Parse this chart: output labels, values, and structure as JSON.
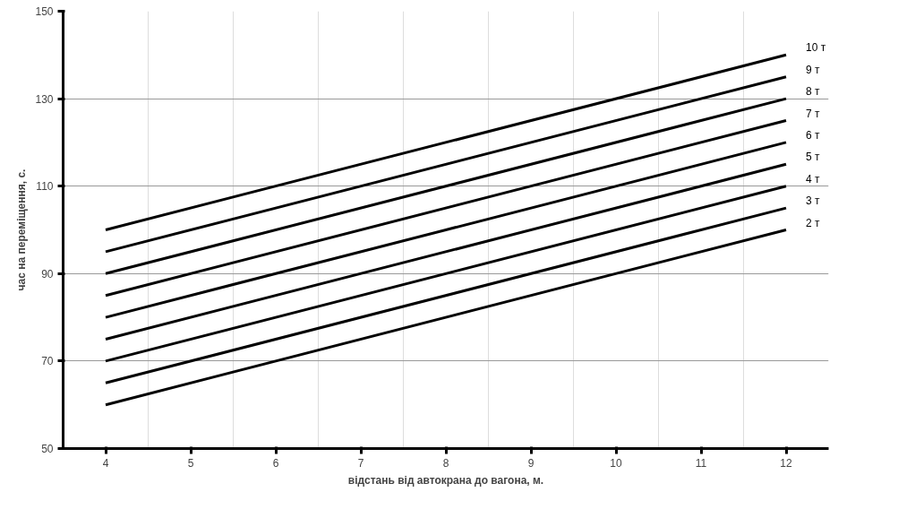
{
  "chart_data": {
    "type": "line",
    "xlabel": "відстань від автокрана до вагона, м.",
    "ylabel": "час на переміщення, с.",
    "x": [
      4,
      12
    ],
    "series": [
      {
        "name": "2 т",
        "color": "#000000",
        "values": [
          60,
          100
        ]
      },
      {
        "name": "3 т",
        "color": "#000000",
        "values": [
          65,
          105
        ]
      },
      {
        "name": "4 т",
        "color": "#000000",
        "values": [
          70,
          110
        ]
      },
      {
        "name": "5 т",
        "color": "#000000",
        "values": [
          75,
          115
        ]
      },
      {
        "name": "6 т",
        "color": "#000000",
        "values": [
          80,
          120
        ]
      },
      {
        "name": "7 т",
        "color": "#000000",
        "values": [
          85,
          125
        ]
      },
      {
        "name": "8 т",
        "color": "#000000",
        "values": [
          90,
          130
        ]
      },
      {
        "name": "9 т",
        "color": "#000000",
        "values": [
          95,
          135
        ]
      },
      {
        "name": "10 т",
        "color": "#000000",
        "values": [
          100,
          140
        ]
      }
    ],
    "xlim": [
      3.5,
      12.5
    ],
    "xticks": [
      4,
      5,
      6,
      7,
      8,
      9,
      10,
      11,
      12
    ],
    "ylim": [
      50,
      150
    ],
    "yticks": [
      50,
      70,
      90,
      110,
      130,
      150
    ],
    "grid": true,
    "marker": "none",
    "line_style": "solid"
  }
}
